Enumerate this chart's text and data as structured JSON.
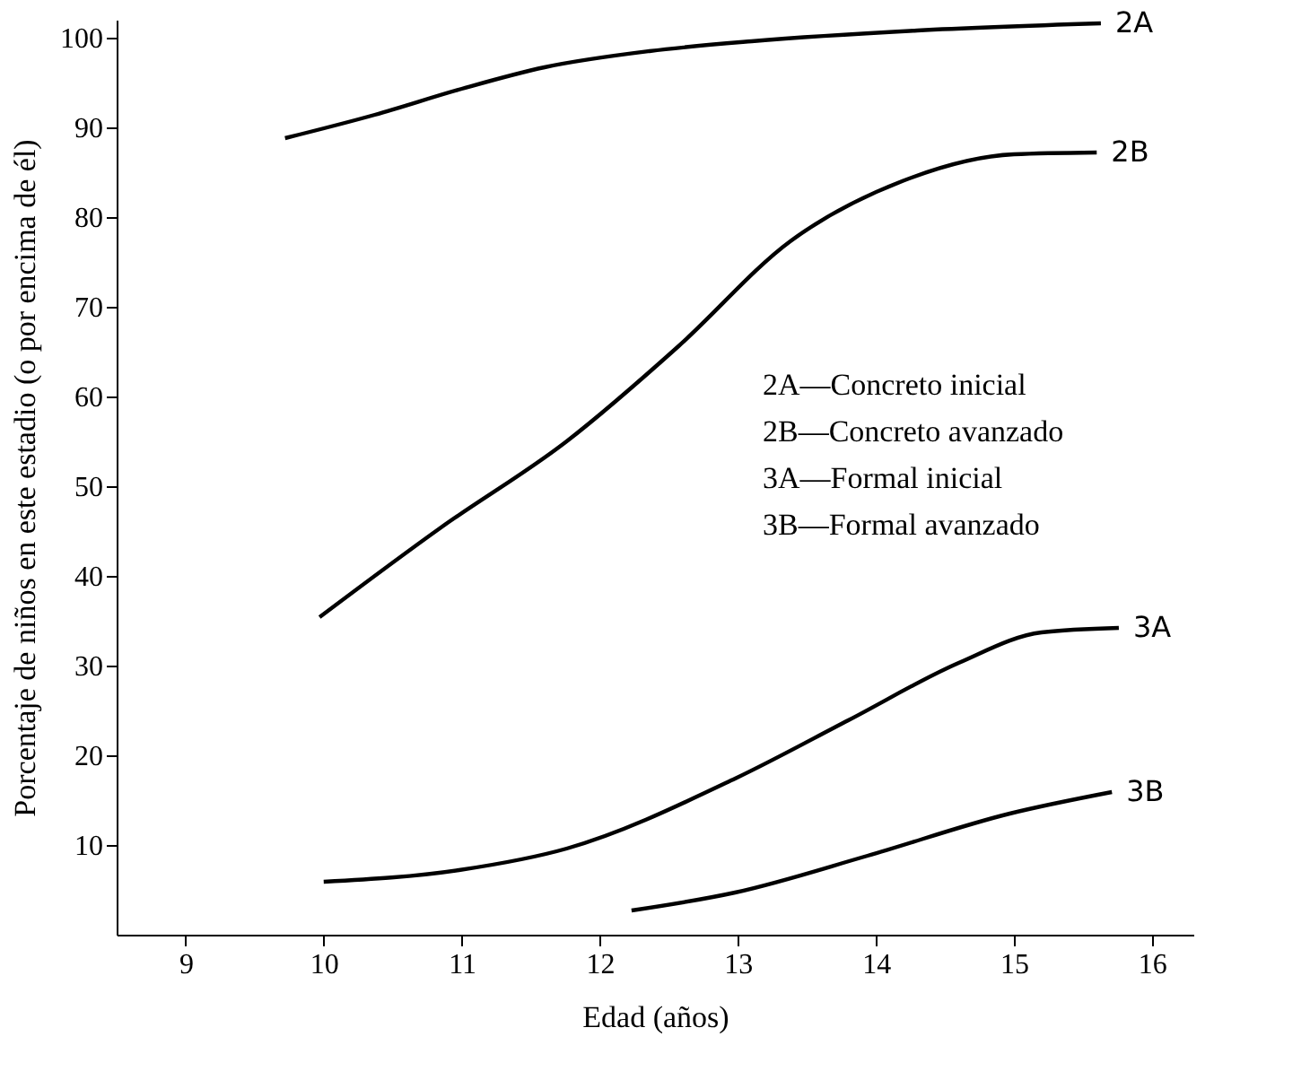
{
  "chart_data": {
    "type": "line",
    "xlabel": "Edad (años)",
    "ylabel": "Porcentaje de niños en este estadio (o por encima de él)",
    "xlim": [
      8.5,
      16.3
    ],
    "xticks": [
      9,
      10,
      11,
      12,
      13,
      14,
      15,
      16
    ],
    "ylim": [
      0,
      102
    ],
    "yticks": [
      10,
      20,
      30,
      40,
      50,
      60,
      70,
      80,
      90,
      100
    ],
    "grid": false,
    "marker": "none",
    "line_style": "solid",
    "series": [
      {
        "name": "2A",
        "color": "#000000",
        "x": [
          9.72,
          10.37,
          11.0,
          11.6,
          12.36,
          13.1,
          14.3,
          15.63
        ],
        "values": [
          88.8,
          91.4,
          94.3,
          96.7,
          98.5,
          99.6,
          100.8,
          101.6
        ]
      },
      {
        "name": "2B",
        "color": "#000000",
        "x": [
          9.97,
          10.85,
          11.76,
          12.57,
          13.38,
          14.19,
          15.0,
          15.6
        ],
        "values": [
          35.4,
          45.4,
          55.0,
          65.6,
          77.3,
          84.0,
          87.0,
          87.2
        ]
      },
      {
        "name": "3A",
        "color": "#000000",
        "x": [
          10.0,
          10.98,
          11.76,
          12.98,
          13.8,
          14.6,
          15.2,
          15.76
        ],
        "values": [
          5.9,
          7.2,
          9.6,
          17.4,
          23.9,
          30.3,
          33.7,
          34.2
        ]
      },
      {
        "name": "3B",
        "color": "#000000",
        "x": [
          12.23,
          12.98,
          13.94,
          14.97,
          15.71
        ],
        "values": [
          2.7,
          4.7,
          8.8,
          13.5,
          15.9
        ]
      }
    ],
    "annotations": [
      "2A—Concreto inicial",
      "2B—Concreto avanzado",
      "3A—Formal inicial",
      "3B—Formal avanzado"
    ]
  }
}
